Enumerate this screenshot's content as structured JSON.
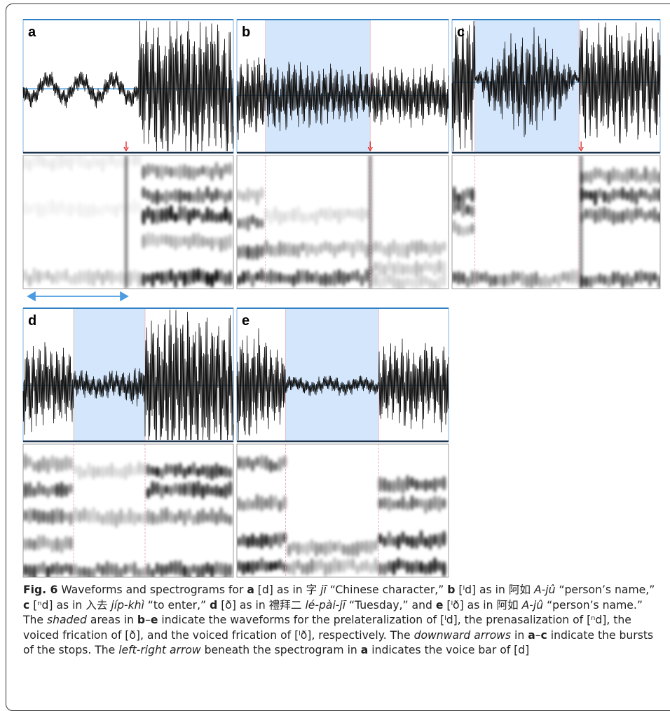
{
  "figure": {
    "panels": [
      {
        "label": "a"
      },
      {
        "label": "b"
      },
      {
        "label": "c"
      },
      {
        "label": "d"
      },
      {
        "label": "e"
      }
    ],
    "caption": {
      "runs": [
        {
          "text": "Fig. 6",
          "bold": true
        },
        {
          "text": " Waveforms and spectrograms for "
        },
        {
          "text": "a",
          "bold": true
        },
        {
          "text": " [d] as in 字 "
        },
        {
          "text": "jī",
          "italic": true
        },
        {
          "text": " “Chinese character,” "
        },
        {
          "text": "b",
          "bold": true
        },
        {
          "text": " [ˡd] as in 阿如 "
        },
        {
          "text": "A-jû",
          "italic": true
        },
        {
          "text": " “person’s name,” "
        },
        {
          "text": "c",
          "bold": true
        },
        {
          "text": " [ⁿd] as in 入去 "
        },
        {
          "text": "jíp-khì",
          "italic": true
        },
        {
          "text": " “to enter,” "
        },
        {
          "text": "d",
          "bold": true
        },
        {
          "text": " [ð] as in 禮拜二 "
        },
        {
          "text": "lé-pài-jī",
          "italic": true
        },
        {
          "text": " “Tuesday,” and "
        },
        {
          "text": "e",
          "bold": true
        },
        {
          "text": " [ˡð] as in 阿如 "
        },
        {
          "text": "A-jû",
          "italic": true
        },
        {
          "text": " “person’s name.” The "
        },
        {
          "text": "shaded",
          "italic": true
        },
        {
          "text": " areas in "
        },
        {
          "text": "b",
          "bold": true
        },
        {
          "text": "–"
        },
        {
          "text": "e",
          "bold": true
        },
        {
          "text": " indicate the waveforms for the prelateralization of [ˡd], the prenasalization of [ⁿd], the voiced frication of [ð], and the voiced frication of [ˡð], respectively. The "
        },
        {
          "text": "downward arrows",
          "italic": true
        },
        {
          "text": " in "
        },
        {
          "text": "a",
          "bold": true
        },
        {
          "text": "–"
        },
        {
          "text": "c",
          "bold": true
        },
        {
          "text": " indicate the bursts of the stops. The "
        },
        {
          "text": "left-right arrow",
          "italic": true
        },
        {
          "text": " beneath the spectrogram in "
        },
        {
          "text": "a",
          "bold": true
        },
        {
          "text": " indicates the voice bar of [d]"
        }
      ]
    }
  }
}
